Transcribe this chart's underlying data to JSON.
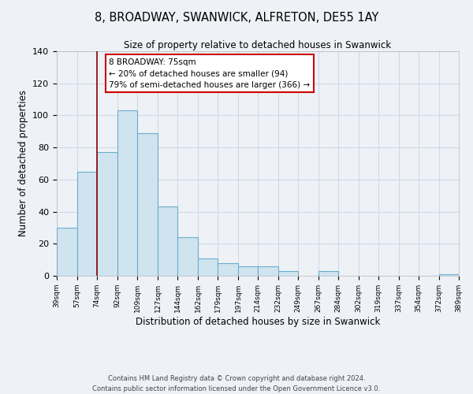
{
  "title": "8, BROADWAY, SWANWICK, ALFRETON, DE55 1AY",
  "subtitle": "Size of property relative to detached houses in Swanwick",
  "xlabel": "Distribution of detached houses by size in Swanwick",
  "ylabel": "Number of detached properties",
  "bar_edges": [
    39,
    57,
    74,
    92,
    109,
    127,
    144,
    162,
    179,
    197,
    214,
    232,
    249,
    267,
    284,
    302,
    319,
    337,
    354,
    372,
    389
  ],
  "bar_heights": [
    30,
    65,
    77,
    103,
    89,
    43,
    24,
    11,
    8,
    6,
    6,
    3,
    0,
    3,
    0,
    0,
    0,
    0,
    0,
    1
  ],
  "bar_color": "#d0e4f0",
  "bar_edgecolor": "#6aadcc",
  "vline_x": 74,
  "vline_color": "#8b0000",
  "ylim": [
    0,
    140
  ],
  "xlim": [
    39,
    389
  ],
  "annotation_title": "8 BROADWAY: 75sqm",
  "annotation_line1": "← 20% of detached houses are smaller (94)",
  "annotation_line2": "79% of semi-detached houses are larger (366) →",
  "annotation_box_color": "#ffffff",
  "annotation_box_edgecolor": "#cc0000",
  "tick_labels": [
    "39sqm",
    "57sqm",
    "74sqm",
    "92sqm",
    "109sqm",
    "127sqm",
    "144sqm",
    "162sqm",
    "179sqm",
    "197sqm",
    "214sqm",
    "232sqm",
    "249sqm",
    "267sqm",
    "284sqm",
    "302sqm",
    "319sqm",
    "337sqm",
    "354sqm",
    "372sqm",
    "389sqm"
  ],
  "footer_line1": "Contains HM Land Registry data © Crown copyright and database right 2024.",
  "footer_line2": "Contains public sector information licensed under the Open Government Licence v3.0.",
  "background_color": "#eef2f7",
  "grid_color": "#d0d8e8"
}
